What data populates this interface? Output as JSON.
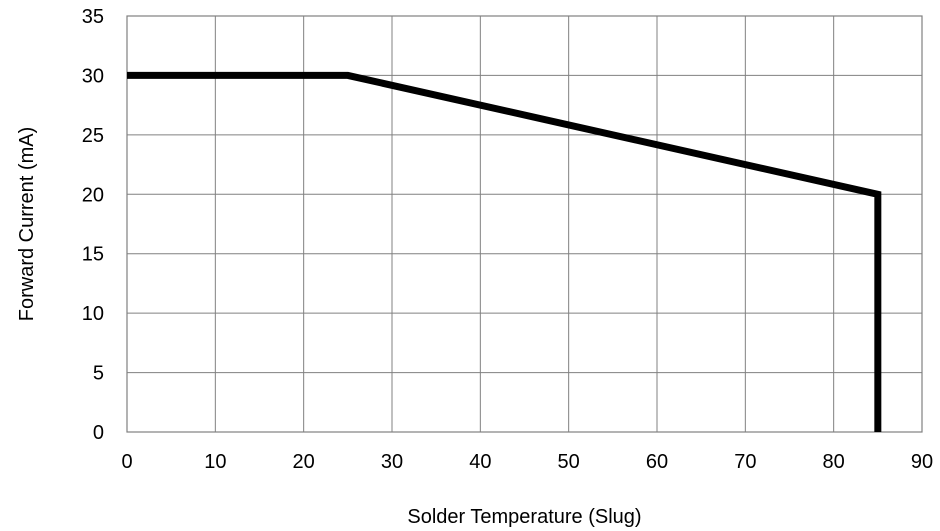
{
  "chart_data": {
    "type": "line",
    "title": "",
    "xlabel": "Solder Temperature (Slug)",
    "ylabel": "Forward Current (mA)",
    "xlim": [
      0,
      90
    ],
    "ylim": [
      0,
      35
    ],
    "xticks": [
      0,
      10,
      20,
      30,
      40,
      50,
      60,
      70,
      80,
      90
    ],
    "yticks": [
      0,
      5,
      10,
      15,
      20,
      25,
      30,
      35
    ],
    "grid": true,
    "legend": "none",
    "series": [
      {
        "x": [
          0,
          25,
          85,
          85
        ],
        "y": [
          30,
          30,
          20,
          0
        ],
        "color": "#000000"
      }
    ]
  }
}
